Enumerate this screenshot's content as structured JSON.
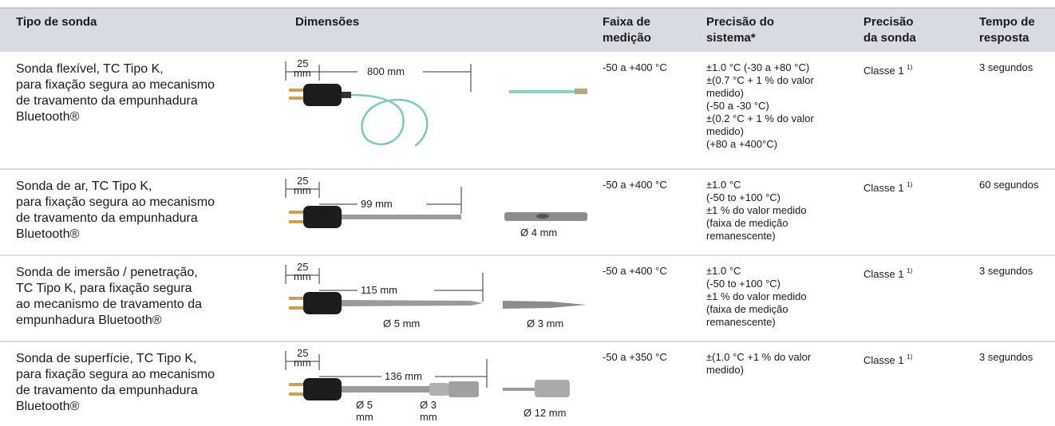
{
  "header": [
    [
      "Tipo de sonda"
    ],
    [
      "Dimensões"
    ],
    [
      "Faixa de",
      "medição"
    ],
    [
      "Precisão do",
      "sistema*"
    ],
    [
      "Precisão",
      "da sonda"
    ],
    [
      "Tempo de",
      "resposta"
    ]
  ],
  "rows": [
    {
      "type": [
        "Sonda flexível, TC Tipo K,",
        "para fixação segura ao mecanismo",
        "de travamento da empunhadura",
        "Bluetooth®"
      ],
      "dimensions": [
        [
          "25",
          "mm"
        ],
        "800 mm"
      ],
      "range": "-50 a +400 °C",
      "system_accuracy": [
        "±1.0 °C (-30 a +80 °C)",
        "±(0.7 °C + 1 % do valor",
        "medido)",
        "(-50 a -30 °C)",
        "±(0.2 °C + 1 % do valor",
        "medido)",
        "(+80 a +400°C)"
      ],
      "probe_accuracy": "Classe 1",
      "probe_accuracy_note": "1)",
      "response_time": "3 segundos"
    },
    {
      "type": [
        "Sonda de ar, TC Tipo K,",
        "para fixação segura ao mecanismo",
        "de travamento da empunhadura",
        "Bluetooth®"
      ],
      "dimensions": [
        [
          "25",
          "mm"
        ],
        "99 mm",
        "Ø 4 mm"
      ],
      "range": "-50 a +400 °C",
      "system_accuracy": [
        "±1.0 °C",
        "(-50 to +100 °C)",
        "±1 % do valor medido",
        "(faixa de medição",
        "remanescente)"
      ],
      "probe_accuracy": "Classe 1",
      "probe_accuracy_note": "1)",
      "response_time": "60 segundos"
    },
    {
      "type": [
        "Sonda de imersão / penetração,",
        "TC Tipo K, para fixação segura",
        "ao mecanismo de travamento da",
        "empunhadura Bluetooth®"
      ],
      "dimensions": [
        [
          "25",
          "mm"
        ],
        "115 mm",
        "Ø 5 mm",
        "Ø 3 mm"
      ],
      "range": "-50 a +400 °C",
      "system_accuracy": [
        "±1.0 °C",
        "(-50 to +100 °C)",
        "±1 % do valor medido",
        "(faixa de medição",
        "remanescente)"
      ],
      "probe_accuracy": "Classe 1",
      "probe_accuracy_note": "1)",
      "response_time": "3 segundos"
    },
    {
      "type": [
        "Sonda de superfície, TC Tipo K,",
        "para fixação segura ao mecanismo",
        "de travamento da empunhadura",
        "Bluetooth®"
      ],
      "dimensions": [
        [
          "25",
          "mm"
        ],
        "136 mm",
        [
          "Ø 5",
          "mm"
        ],
        [
          "Ø 3",
          "mm"
        ],
        "Ø 12 mm"
      ],
      "range": "-50 a +350 °C",
      "system_accuracy": [
        "±(1.0 °C +1 % do valor",
        "medido)"
      ],
      "probe_accuracy": "Classe 1",
      "probe_accuracy_note": "1)",
      "response_time": "3 segundos"
    }
  ]
}
